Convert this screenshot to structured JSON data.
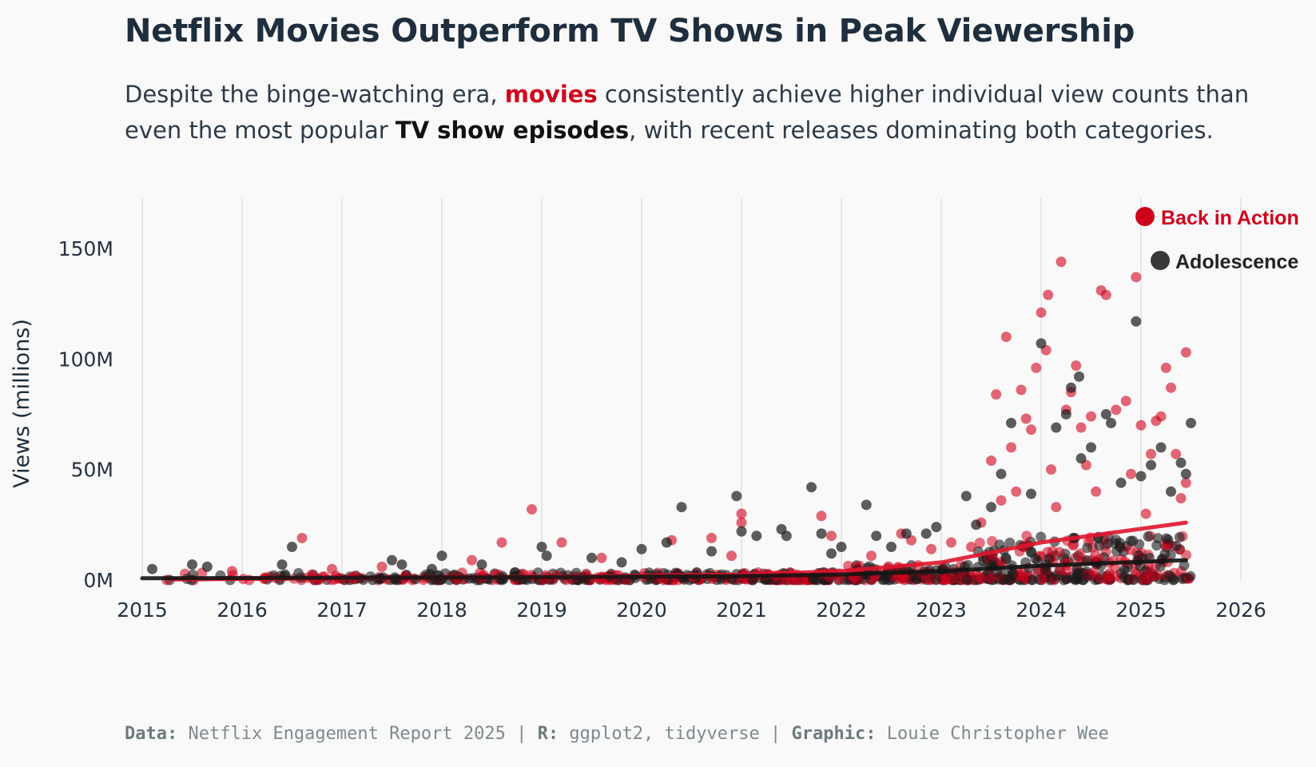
{
  "header": {
    "title": "Netflix Movies Outperform TV Shows in Peak Viewership",
    "subtitle_part1": "Despite the binge-watching era, ",
    "subtitle_movies": "movies",
    "subtitle_part2": " consistently achieve higher individual view counts than even the most popular ",
    "subtitle_tv": "TV show episodes",
    "subtitle_part3": ", with recent releases dominating both categories."
  },
  "caption": {
    "data_label": "Data:",
    "data_value": "Netflix Engagement Report 2025",
    "r_label": "R:",
    "r_value": "ggplot2, tidyverse",
    "graphic_label": "Graphic:",
    "graphic_value": "Louie Christopher Wee",
    "sep": " | "
  },
  "colors": {
    "movie": "#d0021b",
    "tv": "#1a1a1a",
    "background": "#f9f9f9",
    "grid": "#dcdcdc",
    "text": "#253241"
  },
  "chart_data": {
    "type": "scatter",
    "title": "Netflix Movies Outperform TV Shows in Peak Viewership",
    "xlabel": "",
    "ylabel": "Views (millions)",
    "xlim": [
      2015,
      2026
    ],
    "ylim": [
      0,
      170
    ],
    "x_ticks": [
      "2015",
      "2016",
      "2017",
      "2018",
      "2019",
      "2020",
      "2021",
      "2022",
      "2023",
      "2024",
      "2025",
      "2026"
    ],
    "y_ticks": [
      {
        "value": 0,
        "label": "0M"
      },
      {
        "value": 50,
        "label": "50M"
      },
      {
        "value": 100,
        "label": "100M"
      },
      {
        "value": 150,
        "label": "150M"
      }
    ],
    "grid": "vertical",
    "annotations": [
      {
        "label": "Back in Action",
        "series": "Movies"
      },
      {
        "label": "Adolescence",
        "series": "TV Shows"
      }
    ],
    "series": [
      {
        "name": "Movies",
        "color": "#d0021b",
        "trend": [
          [
            2015.3,
            0.3
          ],
          [
            2017,
            0.8
          ],
          [
            2019,
            1.5
          ],
          [
            2021,
            2.5
          ],
          [
            2022,
            4
          ],
          [
            2023,
            8
          ],
          [
            2024,
            17
          ],
          [
            2025.45,
            26
          ]
        ],
        "points": [
          [
            2016.6,
            19
          ],
          [
            2018.9,
            32
          ],
          [
            2019.2,
            17
          ],
          [
            2018.6,
            17
          ],
          [
            2020.3,
            18
          ],
          [
            2020.7,
            19
          ],
          [
            2021.0,
            30
          ],
          [
            2021.0,
            26
          ],
          [
            2021.8,
            29
          ],
          [
            2021.9,
            20
          ],
          [
            2022.6,
            21
          ],
          [
            2022.7,
            18
          ],
          [
            2023.1,
            17
          ],
          [
            2023.3,
            15
          ],
          [
            2023.5,
            54
          ],
          [
            2023.55,
            84
          ],
          [
            2023.65,
            110
          ],
          [
            2023.7,
            60
          ],
          [
            2023.8,
            86
          ],
          [
            2023.9,
            68
          ],
          [
            2023.85,
            73
          ],
          [
            2023.95,
            96
          ],
          [
            2024.0,
            121
          ],
          [
            2024.05,
            104
          ],
          [
            2024.07,
            129
          ],
          [
            2024.2,
            144
          ],
          [
            2024.25,
            77
          ],
          [
            2024.3,
            85
          ],
          [
            2024.35,
            97
          ],
          [
            2024.4,
            69
          ],
          [
            2024.5,
            74
          ],
          [
            2024.6,
            131
          ],
          [
            2024.65,
            129
          ],
          [
            2024.75,
            77
          ],
          [
            2024.85,
            81
          ],
          [
            2024.95,
            137
          ],
          [
            2025.0,
            70
          ],
          [
            2025.1,
            57
          ],
          [
            2025.15,
            72
          ],
          [
            2025.2,
            74
          ],
          [
            2025.25,
            96
          ],
          [
            2025.3,
            87
          ],
          [
            2025.35,
            57
          ],
          [
            2025.45,
            103
          ],
          [
            2025.45,
            44
          ],
          [
            2025.4,
            37
          ],
          [
            2024.1,
            50
          ],
          [
            2023.75,
            40
          ],
          [
            2024.45,
            52
          ],
          [
            2024.9,
            48
          ],
          [
            2023.4,
            26
          ],
          [
            2023.6,
            36
          ],
          [
            2024.15,
            33
          ],
          [
            2024.55,
            40
          ],
          [
            2025.05,
            30
          ],
          [
            2022.9,
            14
          ],
          [
            2022.3,
            11
          ],
          [
            2020.9,
            11
          ],
          [
            2019.6,
            10
          ],
          [
            2018.3,
            9
          ],
          [
            2017.4,
            6
          ],
          [
            2016.9,
            5
          ],
          [
            2015.9,
            4
          ]
        ]
      },
      {
        "name": "TV Shows",
        "color": "#1a1a1a",
        "trend": [
          [
            2015,
            0.8
          ],
          [
            2017,
            1
          ],
          [
            2019,
            1.3
          ],
          [
            2021,
            1.8
          ],
          [
            2022,
            2.5
          ],
          [
            2023,
            4
          ],
          [
            2024,
            6.5
          ],
          [
            2025.45,
            9
          ]
        ],
        "points": [
          [
            2015.1,
            5
          ],
          [
            2015.5,
            7
          ],
          [
            2015.65,
            6
          ],
          [
            2016.4,
            7
          ],
          [
            2016.5,
            15
          ],
          [
            2017.5,
            9
          ],
          [
            2017.6,
            7
          ],
          [
            2018.0,
            11
          ],
          [
            2018.4,
            7
          ],
          [
            2019.0,
            15
          ],
          [
            2019.05,
            11
          ],
          [
            2019.5,
            10
          ],
          [
            2020.0,
            14
          ],
          [
            2020.25,
            17
          ],
          [
            2020.4,
            33
          ],
          [
            2020.7,
            13
          ],
          [
            2020.95,
            38
          ],
          [
            2021.0,
            22
          ],
          [
            2021.15,
            20
          ],
          [
            2021.4,
            23
          ],
          [
            2021.45,
            20
          ],
          [
            2021.7,
            42
          ],
          [
            2021.8,
            21
          ],
          [
            2022.0,
            15
          ],
          [
            2022.25,
            34
          ],
          [
            2022.35,
            20
          ],
          [
            2022.65,
            21
          ],
          [
            2022.85,
            21
          ],
          [
            2022.95,
            24
          ],
          [
            2023.25,
            38
          ],
          [
            2023.5,
            33
          ],
          [
            2023.6,
            48
          ],
          [
            2023.7,
            71
          ],
          [
            2024.0,
            107
          ],
          [
            2024.15,
            69
          ],
          [
            2024.25,
            75
          ],
          [
            2024.3,
            87
          ],
          [
            2024.38,
            92
          ],
          [
            2024.5,
            60
          ],
          [
            2024.65,
            75
          ],
          [
            2024.7,
            71
          ],
          [
            2024.95,
            117
          ],
          [
            2025.0,
            47
          ],
          [
            2025.1,
            52
          ],
          [
            2025.2,
            60
          ],
          [
            2025.4,
            53
          ],
          [
            2025.45,
            48
          ],
          [
            2025.5,
            71
          ],
          [
            2024.4,
            55
          ],
          [
            2023.9,
            39
          ],
          [
            2024.8,
            44
          ],
          [
            2025.3,
            40
          ],
          [
            2023.35,
            25
          ],
          [
            2022.5,
            15
          ],
          [
            2021.9,
            12
          ],
          [
            2019.8,
            8
          ],
          [
            2017.9,
            5
          ]
        ]
      }
    ]
  }
}
